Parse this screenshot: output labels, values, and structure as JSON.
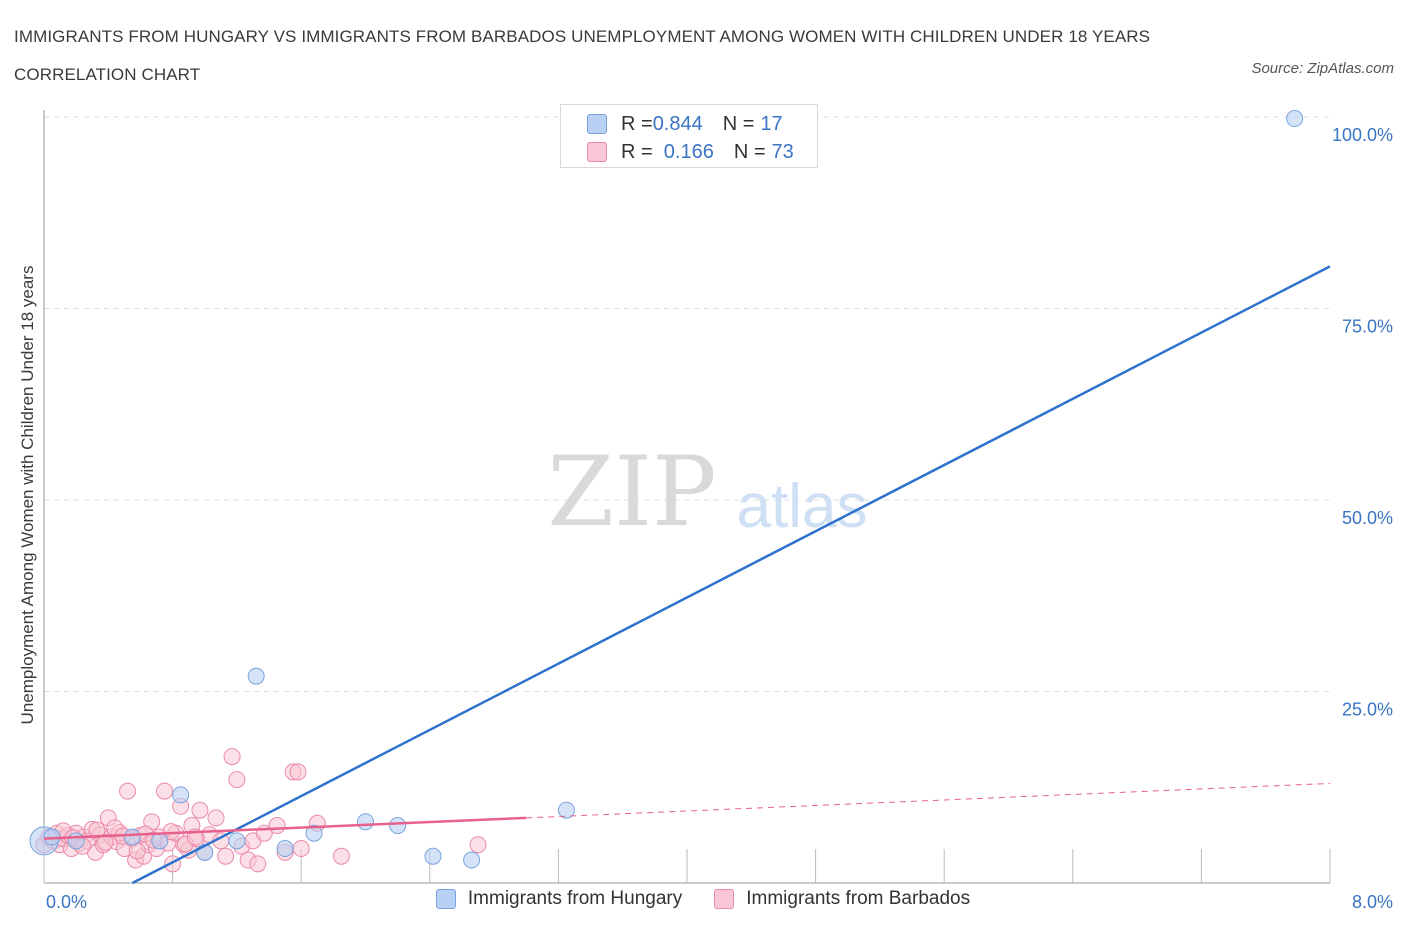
{
  "title": "IMMIGRANTS FROM HUNGARY VS IMMIGRANTS FROM BARBADOS UNEMPLOYMENT AMONG WOMEN WITH CHILDREN UNDER 18 YEARS CORRELATION CHART",
  "source": "Source: ZipAtlas.com",
  "watermark": {
    "zip": "ZIP",
    "atlas": "atlas"
  },
  "legend": {
    "rows": [
      {
        "r_label": "R = ",
        "r_value": "0.844",
        "n_label": "N = ",
        "n_value": "17"
      },
      {
        "r_label": "R = ",
        "r_value": " 0.166",
        "n_label": "N = ",
        "n_value": "73"
      }
    ]
  },
  "colors": {
    "hungary_fill": "#b8d0f4",
    "hungary_stroke": "#7aa3dd",
    "hungary_line": "#2f72cc",
    "barbados_fill": "#f8c6d4",
    "barbados_stroke": "#eb8aaa",
    "barbados_line": "#e8608c",
    "tick_label": "#3a74c4",
    "grid": "#dddddd"
  },
  "chart_data": {
    "type": "scatter",
    "title": "IMMIGRANTS FROM HUNGARY VS IMMIGRANTS FROM BARBADOS UNEMPLOYMENT AMONG WOMEN WITH CHILDREN UNDER 18 YEARS CORRELATION CHART",
    "xlabel": "",
    "ylabel": "Unemployment Among Women with Children Under 18 years",
    "xlim": [
      0,
      8
    ],
    "ylim": [
      0,
      100
    ],
    "x_tick_labels": [
      "0.0%",
      "8.0%"
    ],
    "y_ticks": [
      25,
      50,
      75,
      100
    ],
    "y_tick_labels": [
      "25.0%",
      "50.0%",
      "75.0%",
      "100.0%"
    ],
    "grid": true,
    "legend_position": "bottom",
    "series": [
      {
        "name": "Immigrants from Hungary",
        "R": 0.844,
        "N": 17,
        "points": [
          [
            0.0,
            5.5
          ],
          [
            0.05,
            6.0
          ],
          [
            0.2,
            5.5
          ],
          [
            0.55,
            6.0
          ],
          [
            0.72,
            5.5
          ],
          [
            0.85,
            11.5
          ],
          [
            1.0,
            4.0
          ],
          [
            1.2,
            5.5
          ],
          [
            1.32,
            27.0
          ],
          [
            1.5,
            4.5
          ],
          [
            1.68,
            6.5
          ],
          [
            2.0,
            8.0
          ],
          [
            2.2,
            7.5
          ],
          [
            2.42,
            3.5
          ],
          [
            2.66,
            3.0
          ],
          [
            3.25,
            9.5
          ],
          [
            7.78,
            99.8
          ]
        ],
        "trendline": {
          "x": [
            0.55,
            8.0
          ],
          "y": [
            0.0,
            80.5
          ],
          "dashed_extension": false
        }
      },
      {
        "name": "Immigrants from Barbados",
        "R": 0.166,
        "N": 73,
        "points": [
          [
            0.0,
            5.0
          ],
          [
            0.03,
            6.0
          ],
          [
            0.06,
            5.5
          ],
          [
            0.08,
            6.5
          ],
          [
            0.1,
            5.0
          ],
          [
            0.12,
            5.8
          ],
          [
            0.15,
            6.2
          ],
          [
            0.17,
            4.5
          ],
          [
            0.2,
            6.5
          ],
          [
            0.22,
            5.2
          ],
          [
            0.25,
            6.0
          ],
          [
            0.27,
            5.5
          ],
          [
            0.3,
            7.0
          ],
          [
            0.32,
            4.0
          ],
          [
            0.35,
            6.3
          ],
          [
            0.37,
            5.0
          ],
          [
            0.4,
            8.5
          ],
          [
            0.42,
            6.0
          ],
          [
            0.45,
            5.4
          ],
          [
            0.47,
            6.6
          ],
          [
            0.5,
            4.5
          ],
          [
            0.52,
            12.0
          ],
          [
            0.55,
            5.8
          ],
          [
            0.57,
            3.0
          ],
          [
            0.6,
            6.2
          ],
          [
            0.62,
            3.5
          ],
          [
            0.65,
            5.0
          ],
          [
            0.67,
            8.0
          ],
          [
            0.7,
            4.5
          ],
          [
            0.72,
            6.0
          ],
          [
            0.75,
            12.0
          ],
          [
            0.77,
            5.2
          ],
          [
            0.8,
            2.5
          ],
          [
            0.82,
            6.5
          ],
          [
            0.85,
            10.0
          ],
          [
            0.87,
            5.0
          ],
          [
            0.9,
            4.3
          ],
          [
            0.92,
            7.5
          ],
          [
            0.95,
            5.8
          ],
          [
            0.97,
            9.5
          ],
          [
            1.0,
            4.0
          ],
          [
            1.03,
            6.3
          ],
          [
            1.07,
            8.5
          ],
          [
            1.1,
            5.5
          ],
          [
            1.13,
            3.5
          ],
          [
            1.17,
            16.5
          ],
          [
            1.2,
            13.5
          ],
          [
            1.23,
            4.8
          ],
          [
            1.27,
            3.0
          ],
          [
            1.3,
            5.5
          ],
          [
            1.33,
            2.5
          ],
          [
            1.37,
            6.5
          ],
          [
            1.45,
            7.5
          ],
          [
            1.5,
            4.0
          ],
          [
            1.55,
            14.5
          ],
          [
            1.58,
            14.5
          ],
          [
            1.6,
            4.5
          ],
          [
            1.7,
            7.8
          ],
          [
            1.85,
            3.5
          ],
          [
            2.7,
            5.0
          ],
          [
            0.12,
            6.8
          ],
          [
            0.18,
            5.9
          ],
          [
            0.24,
            4.8
          ],
          [
            0.33,
            6.9
          ],
          [
            0.38,
            5.3
          ],
          [
            0.44,
            7.2
          ],
          [
            0.49,
            6.1
          ],
          [
            0.58,
            4.2
          ],
          [
            0.63,
            6.4
          ],
          [
            0.68,
            5.6
          ],
          [
            0.79,
            6.7
          ],
          [
            0.88,
            5.1
          ],
          [
            0.94,
            6.0
          ]
        ],
        "trendline": {
          "x": [
            0.0,
            3.0
          ],
          "y": [
            5.8,
            8.5
          ],
          "dashed_extension": {
            "x": [
              3.0,
              8.0
            ],
            "y": [
              8.5,
              13.0
            ]
          }
        }
      }
    ]
  }
}
